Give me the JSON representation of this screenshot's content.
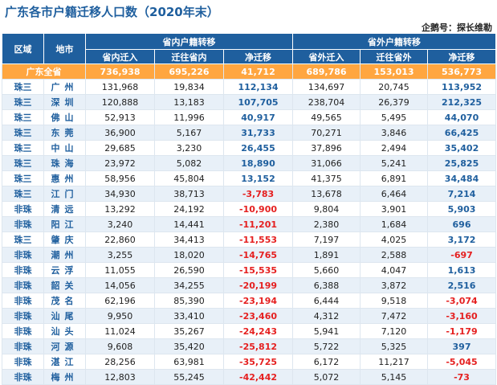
{
  "title": "广东各市户籍迁移人口数（2020年末）",
  "source": "企鹅号：探长维勒",
  "headers": {
    "region": "区域",
    "city": "地市",
    "intra": "省内户籍转移",
    "inter": "省外户籍转移",
    "intra_in": "省内迁入",
    "intra_out": "迁往省内",
    "intra_net": "净迁移",
    "inter_in": "省外迁入",
    "inter_out": "迁往省外",
    "inter_net": "净迁移"
  },
  "colors": {
    "header_bg": "#1f5f9e",
    "total_bg": "#ffa640",
    "stripe": "#e8f0f8",
    "positive": "#1f5f9e",
    "negative": "#e52020"
  },
  "total": {
    "region": "广东全省",
    "intra_in": "736,938",
    "intra_out": "695,226",
    "intra_net": "41,712",
    "inter_in": "689,786",
    "inter_out": "153,013",
    "inter_net": "536,773"
  },
  "rows": [
    {
      "region": "珠三",
      "city": "广州",
      "intra_in": "131,968",
      "intra_out": "19,834",
      "intra_net": "112,134",
      "inter_in": "134,697",
      "inter_out": "20,745",
      "inter_net": "113,952"
    },
    {
      "region": "珠三",
      "city": "深圳",
      "intra_in": "120,888",
      "intra_out": "13,183",
      "intra_net": "107,705",
      "inter_in": "238,704",
      "inter_out": "26,379",
      "inter_net": "212,325"
    },
    {
      "region": "珠三",
      "city": "佛山",
      "intra_in": "52,913",
      "intra_out": "11,996",
      "intra_net": "40,917",
      "inter_in": "49,565",
      "inter_out": "5,495",
      "inter_net": "44,070"
    },
    {
      "region": "珠三",
      "city": "东莞",
      "intra_in": "36,900",
      "intra_out": "5,167",
      "intra_net": "31,733",
      "inter_in": "70,271",
      "inter_out": "3,846",
      "inter_net": "66,425"
    },
    {
      "region": "珠三",
      "city": "中山",
      "intra_in": "29,685",
      "intra_out": "3,230",
      "intra_net": "26,455",
      "inter_in": "37,896",
      "inter_out": "2,494",
      "inter_net": "35,402"
    },
    {
      "region": "珠三",
      "city": "珠海",
      "intra_in": "23,972",
      "intra_out": "5,082",
      "intra_net": "18,890",
      "inter_in": "31,066",
      "inter_out": "5,241",
      "inter_net": "25,825"
    },
    {
      "region": "珠三",
      "city": "惠州",
      "intra_in": "58,956",
      "intra_out": "45,804",
      "intra_net": "13,152",
      "inter_in": "41,375",
      "inter_out": "6,891",
      "inter_net": "34,484"
    },
    {
      "region": "珠三",
      "city": "江门",
      "intra_in": "34,930",
      "intra_out": "38,713",
      "intra_net": "-3,783",
      "inter_in": "13,678",
      "inter_out": "6,464",
      "inter_net": "7,214"
    },
    {
      "region": "非珠",
      "city": "清远",
      "intra_in": "13,292",
      "intra_out": "24,192",
      "intra_net": "-10,900",
      "inter_in": "9,804",
      "inter_out": "3,901",
      "inter_net": "5,903"
    },
    {
      "region": "非珠",
      "city": "阳江",
      "intra_in": "3,240",
      "intra_out": "14,441",
      "intra_net": "-11,201",
      "inter_in": "2,380",
      "inter_out": "1,684",
      "inter_net": "696"
    },
    {
      "region": "珠三",
      "city": "肇庆",
      "intra_in": "22,860",
      "intra_out": "34,413",
      "intra_net": "-11,553",
      "inter_in": "7,197",
      "inter_out": "4,025",
      "inter_net": "3,172"
    },
    {
      "region": "非珠",
      "city": "潮州",
      "intra_in": "3,255",
      "intra_out": "18,020",
      "intra_net": "-14,765",
      "inter_in": "1,891",
      "inter_out": "2,588",
      "inter_net": "-697"
    },
    {
      "region": "非珠",
      "city": "云浮",
      "intra_in": "11,055",
      "intra_out": "26,590",
      "intra_net": "-15,535",
      "inter_in": "5,660",
      "inter_out": "4,047",
      "inter_net": "1,613"
    },
    {
      "region": "非珠",
      "city": "韶关",
      "intra_in": "14,056",
      "intra_out": "34,255",
      "intra_net": "-20,199",
      "inter_in": "6,388",
      "inter_out": "3,872",
      "inter_net": "2,516"
    },
    {
      "region": "非珠",
      "city": "茂名",
      "intra_in": "62,196",
      "intra_out": "85,390",
      "intra_net": "-23,194",
      "inter_in": "6,444",
      "inter_out": "9,518",
      "inter_net": "-3,074"
    },
    {
      "region": "非珠",
      "city": "汕尾",
      "intra_in": "9,950",
      "intra_out": "33,410",
      "intra_net": "-23,460",
      "inter_in": "4,312",
      "inter_out": "7,472",
      "inter_net": "-3,160"
    },
    {
      "region": "非珠",
      "city": "汕头",
      "intra_in": "11,024",
      "intra_out": "35,267",
      "intra_net": "-24,243",
      "inter_in": "5,941",
      "inter_out": "7,120",
      "inter_net": "-1,179"
    },
    {
      "region": "非珠",
      "city": "河源",
      "intra_in": "9,608",
      "intra_out": "35,420",
      "intra_net": "-25,812",
      "inter_in": "5,722",
      "inter_out": "5,325",
      "inter_net": "397"
    },
    {
      "region": "非珠",
      "city": "湛江",
      "intra_in": "28,256",
      "intra_out": "63,981",
      "intra_net": "-35,725",
      "inter_in": "6,172",
      "inter_out": "11,217",
      "inter_net": "-5,045"
    },
    {
      "region": "非珠",
      "city": "梅州",
      "intra_in": "12,803",
      "intra_out": "55,245",
      "intra_net": "-42,442",
      "inter_in": "5,072",
      "inter_out": "5,145",
      "inter_net": "-73"
    }
  ]
}
